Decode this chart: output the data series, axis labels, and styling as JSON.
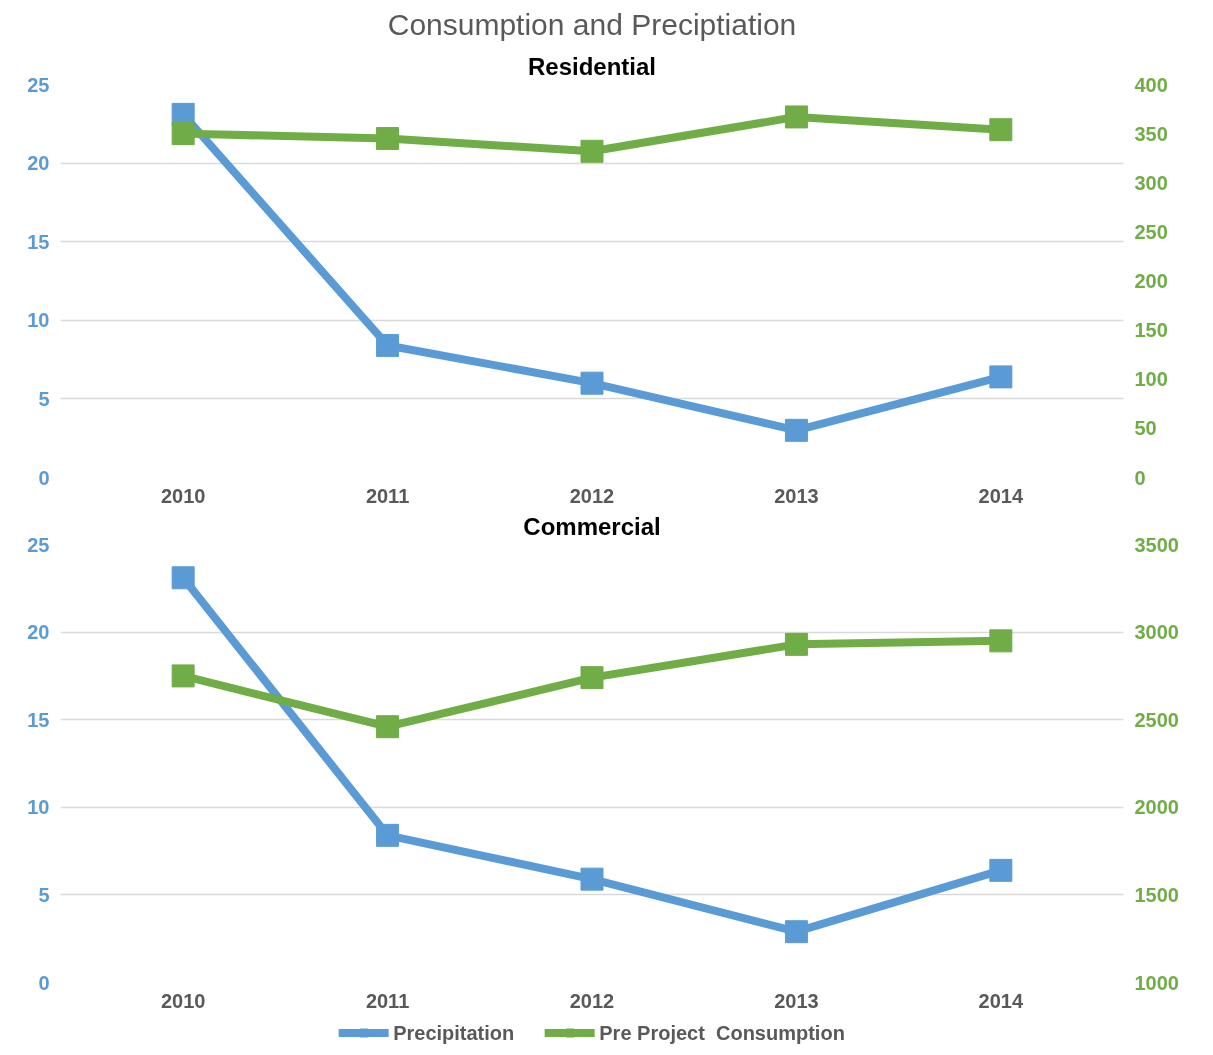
{
  "chart_data": [
    {
      "type": "line",
      "title": "Consumption and Preciptiation",
      "subtitle": "Residential",
      "categories": [
        "2010",
        "2011",
        "2012",
        "2013",
        "2014"
      ],
      "series": [
        {
          "color": "#5b9bd5",
          "values": [
            23.1,
            8.4,
            6.0,
            3.0,
            6.4
          ]
        },
        {
          "color": "#70ad47",
          "axis": "y2",
          "values": [
            350,
            345,
            332,
            367,
            354
          ]
        }
      ],
      "ylim": [
        0,
        25
      ],
      "yticks": [
        0,
        5,
        10,
        15,
        20,
        25
      ],
      "y2lim": [
        0,
        400
      ],
      "y2ticks": [
        0,
        50,
        100,
        150,
        200,
        250,
        300,
        350,
        400
      ],
      "grid": "y",
      "legend": false,
      "marker": "square",
      "line_style": "solid"
    },
    {
      "type": "line",
      "title": "Commercial",
      "categories": [
        "2010",
        "2011",
        "2012",
        "2013",
        "2014"
      ],
      "series": [
        {
          "name": "Precipitation",
          "color": "#5b9bd5",
          "values": [
            23.1,
            8.4,
            5.9,
            2.9,
            6.4
          ]
        },
        {
          "name": "Pre Project  Consumption",
          "color": "#70ad47",
          "axis": "y2",
          "values": [
            2750,
            2460,
            2740,
            2930,
            2950
          ]
        }
      ],
      "ylim": [
        0,
        25
      ],
      "yticks": [
        0,
        5,
        10,
        15,
        20,
        25
      ],
      "y2lim": [
        1000,
        3500
      ],
      "y2ticks": [
        1000,
        1500,
        2000,
        2500,
        3000,
        3500
      ],
      "grid": "y",
      "legend": "bottom",
      "marker": "square",
      "line_style": "solid"
    }
  ]
}
